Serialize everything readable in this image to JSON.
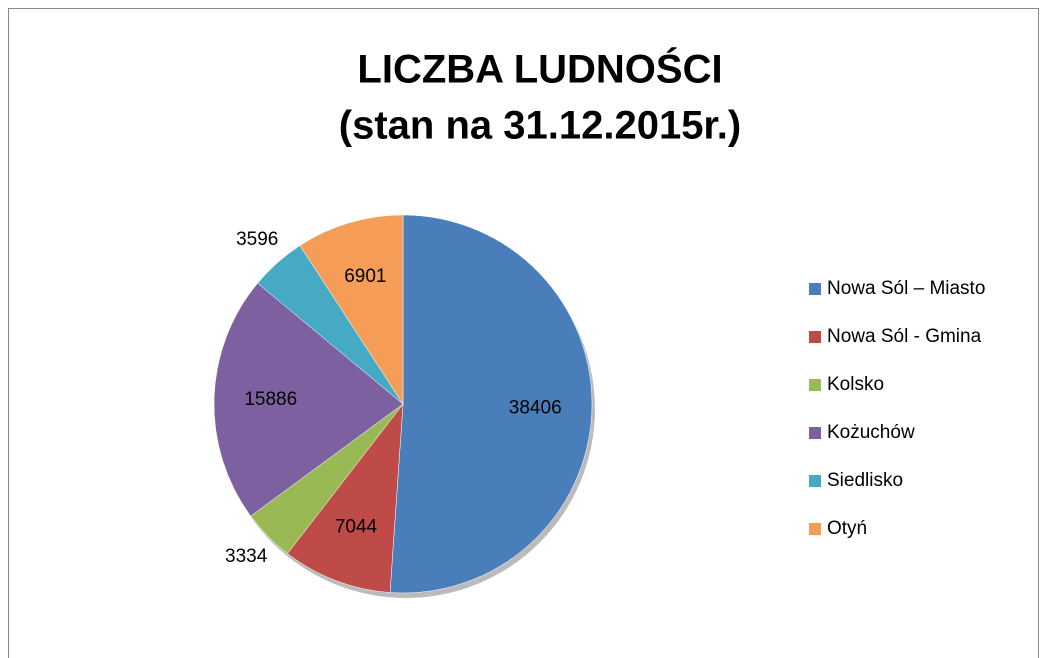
{
  "chart_data": {
    "type": "pie",
    "title": "LICZBA LUDNOŚCI",
    "subtitle": "(stan na 31.12.2015r.)",
    "categories": [
      "Nowa Sól – Miasto",
      "Nowa Sól - Gmina",
      "Kolsko",
      "Kożuchów",
      "Siedlisko",
      "Otyń"
    ],
    "values": [
      38406,
      7044,
      3334,
      15886,
      3596,
      6901
    ],
    "colors": [
      "#4a7ebb",
      "#be4b48",
      "#98b954",
      "#7d60a0",
      "#46aac5",
      "#f59d56"
    ],
    "legend": "right"
  }
}
